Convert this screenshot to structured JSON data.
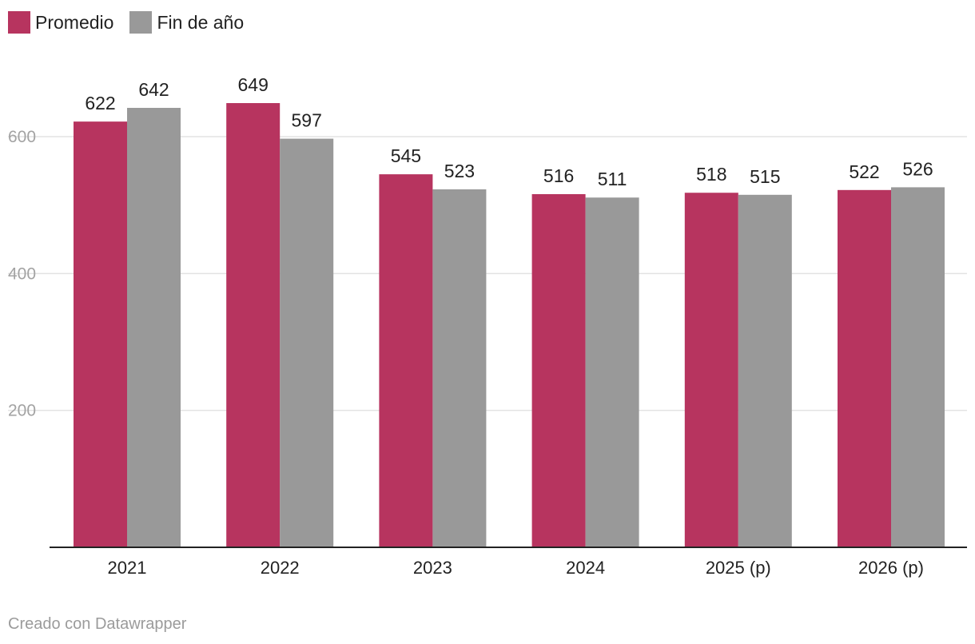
{
  "chart_data": {
    "type": "bar",
    "title": "",
    "xlabel": "",
    "ylabel": "",
    "categories": [
      "2021",
      "2022",
      "2023",
      "2024",
      "2025 (p)",
      "2026 (p)"
    ],
    "series": [
      {
        "name": "Promedio",
        "color": "#b7345f",
        "values": [
          622,
          649,
          545,
          516,
          518,
          522
        ]
      },
      {
        "name": "Fin de año",
        "color": "#999999",
        "values": [
          642,
          597,
          523,
          511,
          515,
          526
        ]
      }
    ],
    "ylim": [
      0,
      700
    ],
    "yticks": [
      200,
      400,
      600
    ],
    "grid": true,
    "legend_position": "top-left"
  },
  "footer": {
    "credit": "Creado con Datawrapper"
  }
}
